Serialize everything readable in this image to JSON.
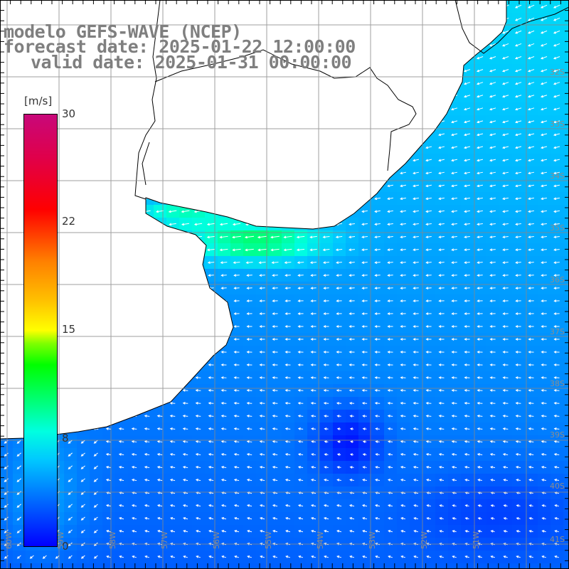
{
  "title": {
    "line1": "modelo GEFS-WAVE (NCEP)",
    "line2": "forecast date: 2025-01-22 12:00:00",
    "line3": "valid date: 2025-01-31 00:00:00"
  },
  "colorbar": {
    "unit": "[m/s]",
    "ticks": [
      "30",
      "22",
      "15",
      "8",
      "0"
    ],
    "range": [
      0,
      30
    ],
    "colors": [
      "#0000ff",
      "#0078ff",
      "#00ffe0",
      "#00ff00",
      "#ffff00",
      "#ff8000",
      "#ff0000",
      "#c8087a"
    ]
  },
  "lat_labels": [
    "32S",
    "33S",
    "34S",
    "35S",
    "36S",
    "37S",
    "38S",
    "39S",
    "40S",
    "41S"
  ],
  "lon_labels": [
    "60W",
    "59W",
    "58W",
    "57W",
    "56W",
    "55W",
    "54W",
    "53W",
    "52W",
    "51W"
  ],
  "land_color": "#ffffff",
  "grid_color": "#888888"
}
